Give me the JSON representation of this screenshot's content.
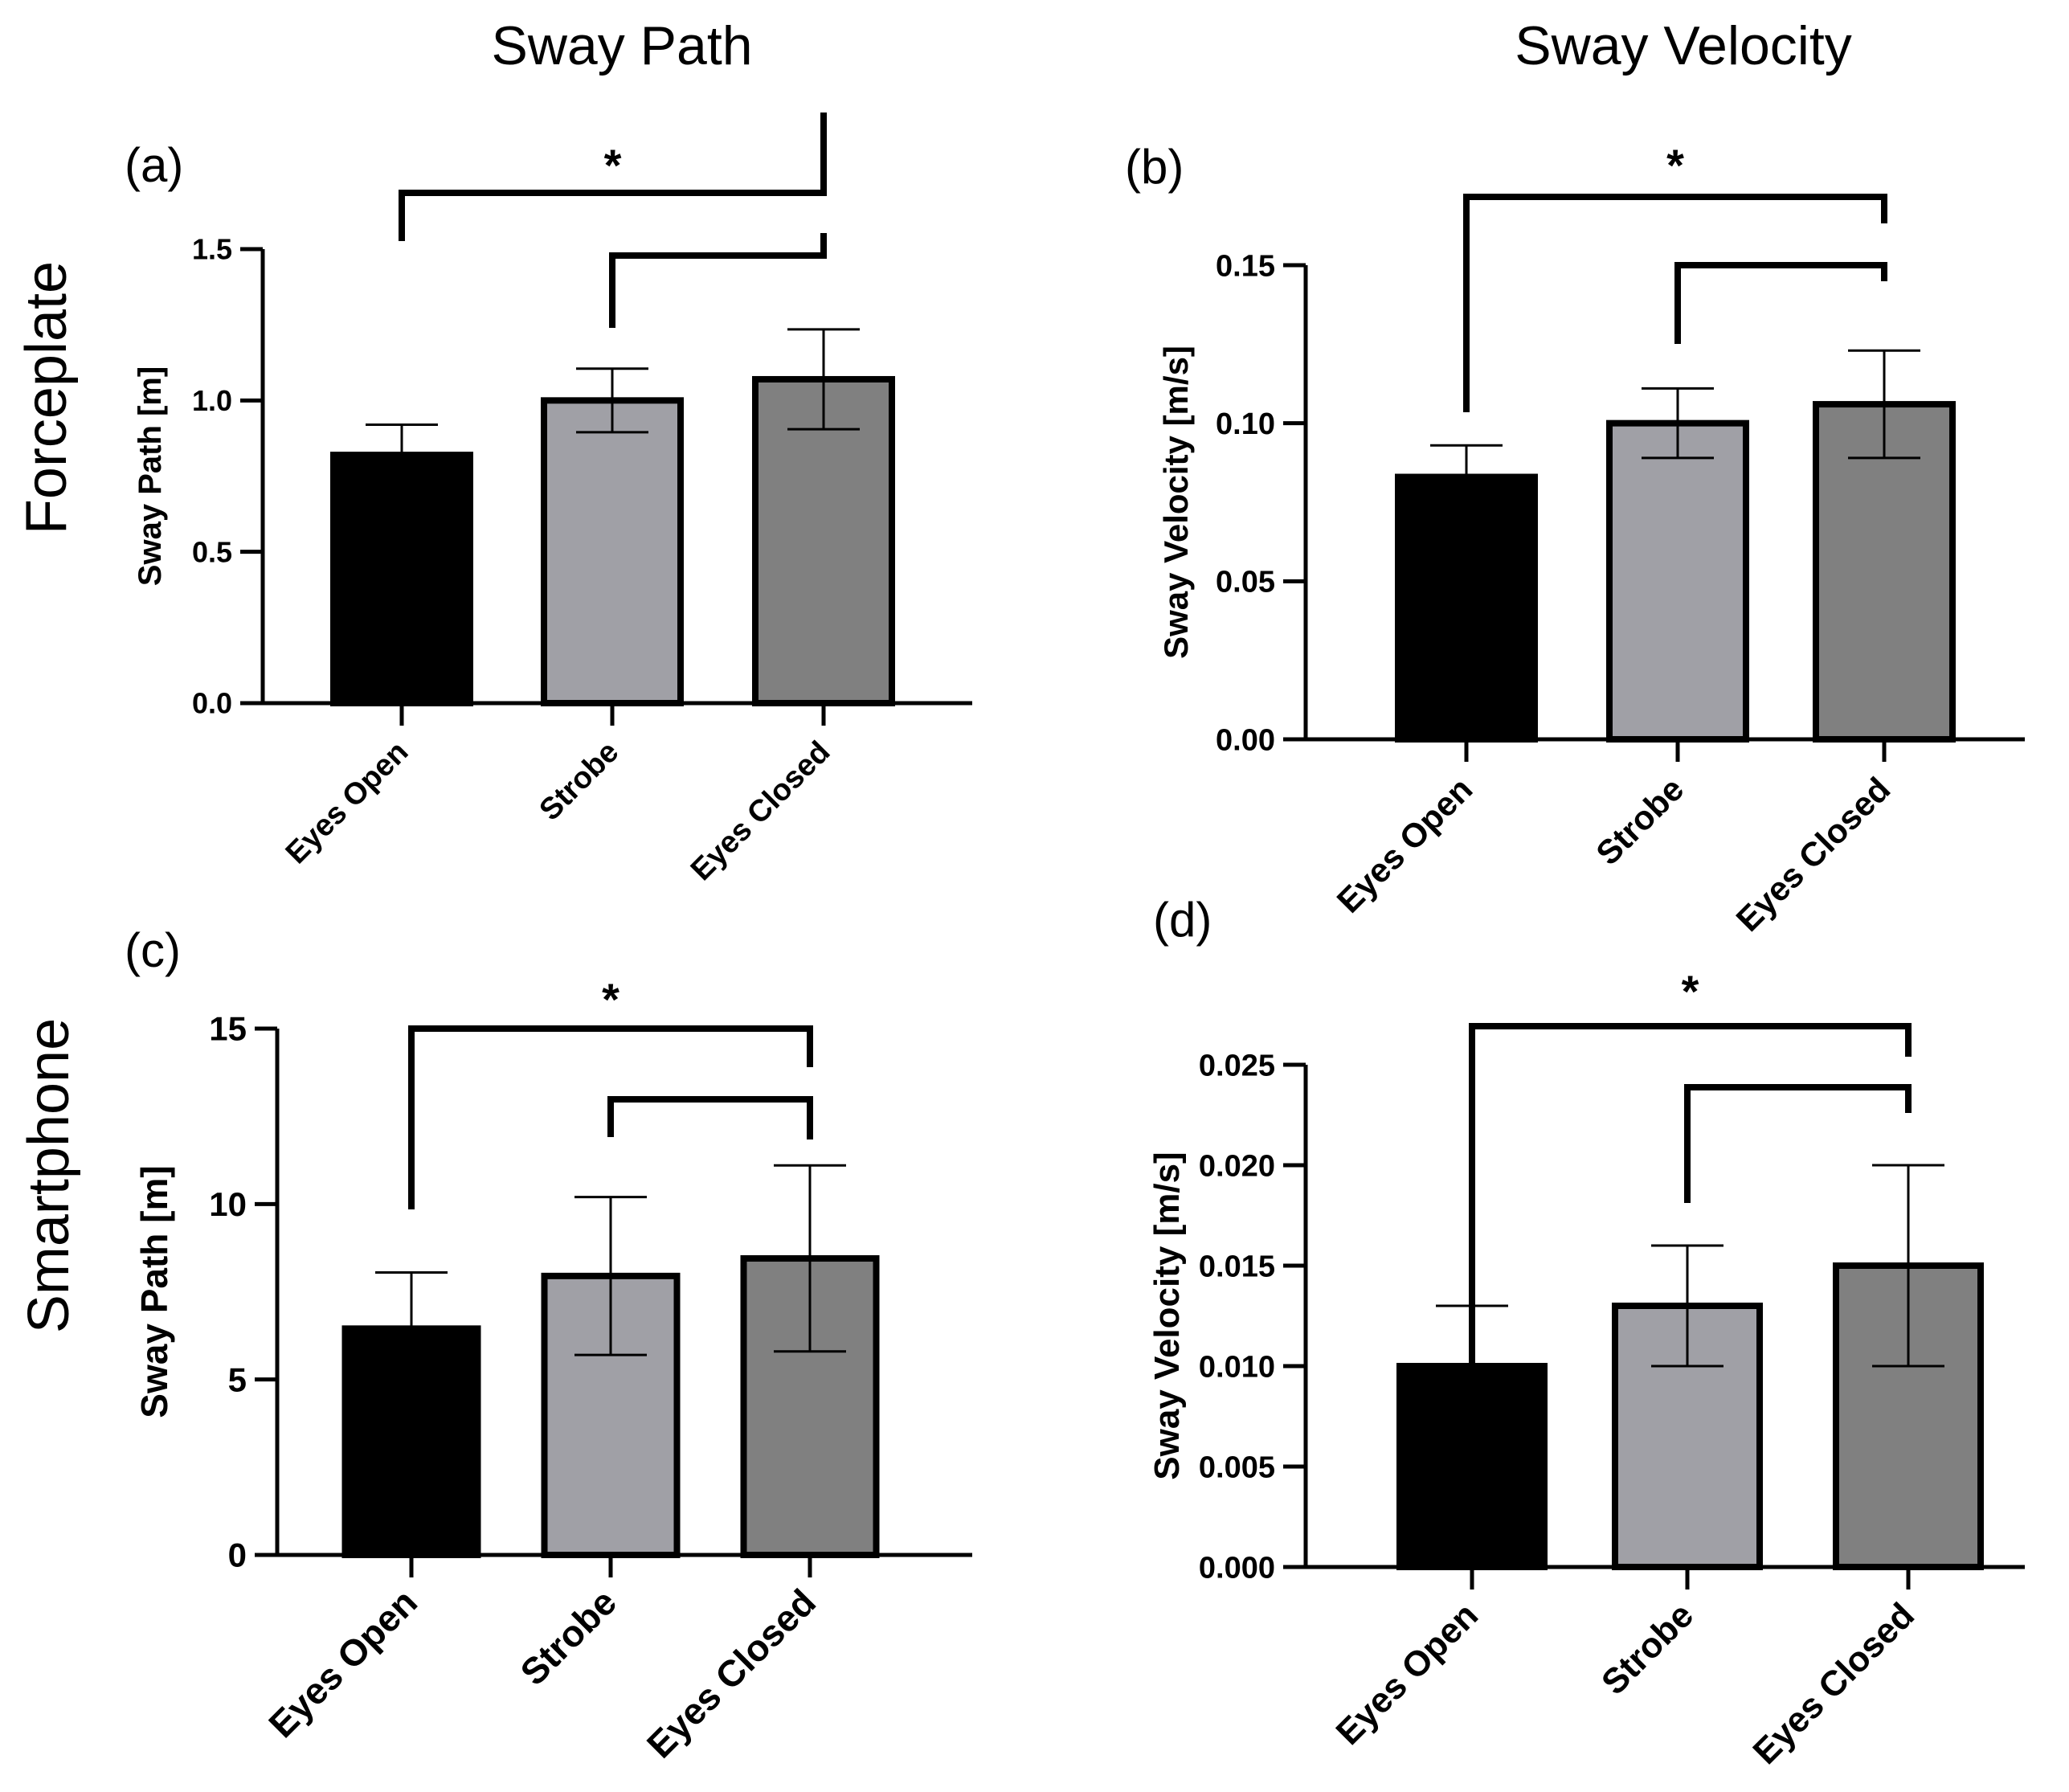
{
  "column_titles": [
    "Sway Path",
    "Sway Velocity"
  ],
  "row_titles": [
    "Forceplate",
    "Smartphone"
  ],
  "chart_data": [
    {
      "panel": "(a)",
      "type": "bar",
      "categories": [
        "Eyes Open",
        "Strobe",
        "Eyes Closed"
      ],
      "values": [
        0.82,
        1.0,
        1.07
      ],
      "errors": [
        0.1,
        0.105,
        0.165
      ],
      "colors": [
        "#000000",
        "#a0a0a6",
        "#808080"
      ],
      "ylabel": "Sway Path [m]",
      "ylim": [
        0,
        1.5
      ],
      "yticks": [
        0.0,
        0.5,
        1.0,
        1.5
      ],
      "ytick_labels": [
        "0.0",
        "0.5",
        "1.0",
        "1.5"
      ],
      "significance": [
        {
          "from": 0,
          "to": 2,
          "label": "*"
        },
        {
          "from": 1,
          "to": 2,
          "label": ""
        }
      ]
    },
    {
      "panel": "(b)",
      "type": "bar",
      "categories": [
        "Eyes Open",
        "Strobe",
        "Eyes Closed"
      ],
      "values": [
        0.083,
        0.1,
        0.106
      ],
      "errors": [
        0.01,
        0.011,
        0.017
      ],
      "colors": [
        "#000000",
        "#a0a0a6",
        "#808080"
      ],
      "ylabel": "Sway Velocity [m/s]",
      "ylim": [
        0,
        0.15
      ],
      "yticks": [
        0.0,
        0.05,
        0.1,
        0.15
      ],
      "ytick_labels": [
        "0.00",
        "0.05",
        "0.10",
        "0.15"
      ],
      "significance": [
        {
          "from": 0,
          "to": 2,
          "label": "*"
        },
        {
          "from": 1,
          "to": 2,
          "label": ""
        }
      ]
    },
    {
      "panel": "(c)",
      "type": "bar",
      "categories": [
        "Eyes Open",
        "Strobe",
        "Eyes Closed"
      ],
      "values": [
        6.45,
        7.95,
        8.45
      ],
      "errors": [
        1.6,
        2.25,
        2.65
      ],
      "colors": [
        "#000000",
        "#a0a0a6",
        "#808080"
      ],
      "ylabel": "Sway Path [m]",
      "ylim": [
        0,
        15
      ],
      "yticks": [
        0,
        5,
        10,
        15
      ],
      "ytick_labels": [
        "0",
        "5",
        "10",
        "15"
      ],
      "significance": [
        {
          "from": 0,
          "to": 2,
          "label": "*"
        },
        {
          "from": 1,
          "to": 2,
          "label": ""
        }
      ]
    },
    {
      "panel": "(d)",
      "type": "bar",
      "categories": [
        "Eyes Open",
        "Strobe",
        "Eyes Closed"
      ],
      "values": [
        0.01,
        0.013,
        0.015
      ],
      "errors": [
        0.003,
        0.003,
        0.005
      ],
      "colors": [
        "#000000",
        "#a0a0a6",
        "#808080"
      ],
      "ylabel": "Sway Velocity [m/s]",
      "ylim": [
        0,
        0.025
      ],
      "yticks": [
        0.0,
        0.005,
        0.01,
        0.015,
        0.02,
        0.025
      ],
      "ytick_labels": [
        "0.000",
        "0.005",
        "0.010",
        "0.015",
        "0.020",
        "0.025"
      ],
      "significance": [
        {
          "from": 0,
          "to": 2,
          "label": "*"
        },
        {
          "from": 1,
          "to": 2,
          "label": ""
        }
      ]
    }
  ]
}
